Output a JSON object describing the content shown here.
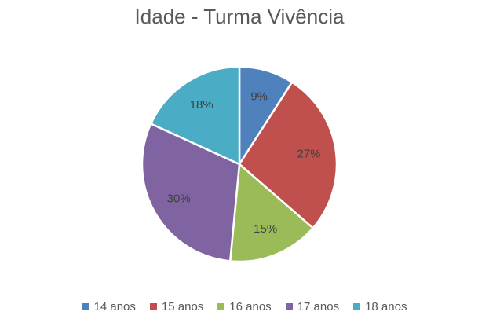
{
  "chart_data": {
    "type": "pie",
    "title": "Idade - Turma Vivência",
    "categories": [
      "14 anos",
      "15 anos",
      "16 anos",
      "17 anos",
      "18 anos"
    ],
    "values": [
      9,
      27,
      15,
      30,
      18
    ],
    "labels": [
      "9%",
      "27%",
      "15%",
      "30%",
      "18%"
    ],
    "colors": [
      "#4F81BD",
      "#C0504D",
      "#9BBB59",
      "#8064A2",
      "#4BACC6"
    ],
    "legend_position": "bottom",
    "start_angle": "12 o'clock",
    "direction": "clockwise"
  }
}
